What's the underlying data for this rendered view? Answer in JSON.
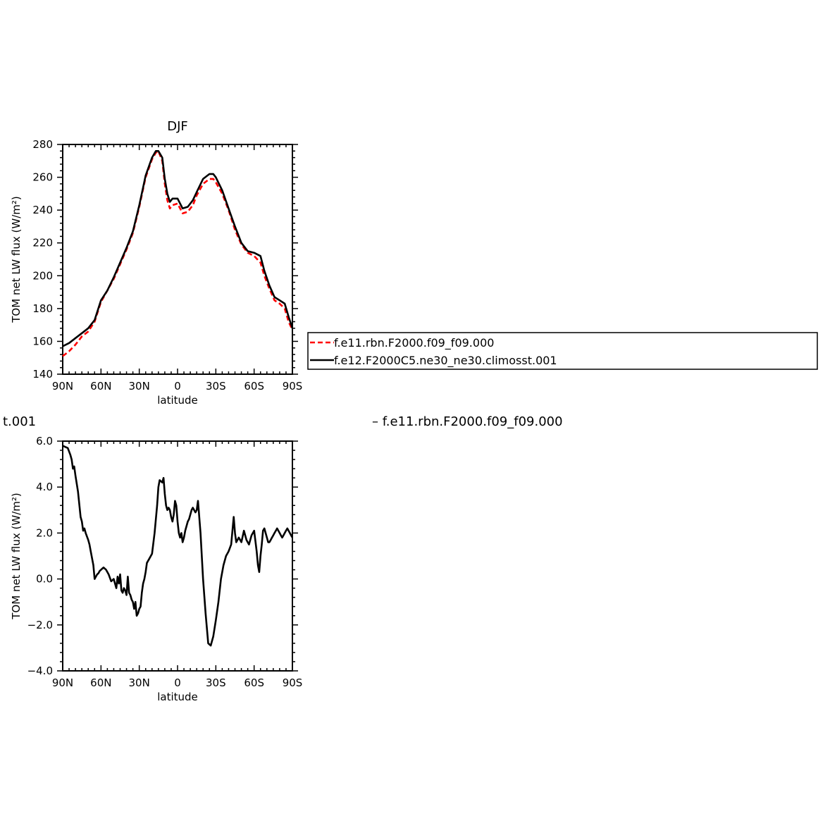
{
  "page_title": "DJF",
  "legend": {
    "entries": [
      {
        "label": "f.e11.rbn.F2000.f09_f09.000",
        "color": "#ff0000",
        "dash": true
      },
      {
        "label": "f.e12.F2000C5.ne30_ne30.climosst.001",
        "color": "#000000",
        "dash": false
      }
    ]
  },
  "diff_title": {
    "left_fragment": "t.001",
    "right_text": "–  f.e11.rbn.F2000.f09_f09.000"
  },
  "chart_data": [
    {
      "type": "line",
      "title": "DJF",
      "xlabel": "latitude",
      "ylabel": "TOM net LW flux (W/m²)",
      "xlim": [
        90,
        -90
      ],
      "ylim": [
        140,
        280
      ],
      "xticks": [
        90,
        60,
        30,
        0,
        -30,
        -60,
        -90
      ],
      "xtick_labels": [
        "90N",
        "60N",
        "30N",
        "0",
        "30S",
        "60S",
        "90S"
      ],
      "yticks": [
        140,
        160,
        180,
        200,
        220,
        240,
        260,
        280
      ],
      "ytick_labels": [
        "140",
        "160",
        "180",
        "200",
        "220",
        "240",
        "260",
        "280"
      ],
      "grid": false,
      "series": [
        {
          "name": "f.e11.rbn.F2000.f09_f09.000",
          "color": "#ff0000",
          "dash": true,
          "x": [
            90,
            85,
            80,
            75,
            70,
            65,
            60,
            55,
            50,
            45,
            40,
            35,
            30,
            25,
            20,
            17,
            15,
            12,
            10,
            8,
            6,
            4,
            0,
            -4,
            -8,
            -12,
            -15,
            -20,
            -25,
            -28,
            -30,
            -35,
            -40,
            -45,
            -50,
            -55,
            -60,
            -65,
            -68,
            -72,
            -76,
            -80,
            -84,
            -87,
            -90
          ],
          "y": [
            151,
            154,
            158,
            163,
            166,
            172,
            184,
            191,
            198,
            207,
            216,
            226,
            242,
            260,
            271,
            275,
            276,
            270,
            256,
            246,
            241,
            243,
            244,
            238,
            239,
            243,
            249,
            256,
            259,
            259,
            257,
            250,
            240,
            228,
            219,
            214,
            212,
            208,
            200,
            192,
            185,
            183,
            180,
            172,
            167
          ]
        },
        {
          "name": "f.e12.F2000C5.ne30_ne30.climosst.001",
          "color": "#000000",
          "dash": false,
          "x": [
            90,
            85,
            80,
            75,
            70,
            65,
            60,
            55,
            50,
            45,
            40,
            35,
            30,
            25,
            20,
            17,
            15,
            12,
            10,
            8,
            6,
            4,
            0,
            -4,
            -8,
            -12,
            -15,
            -20,
            -25,
            -28,
            -30,
            -35,
            -40,
            -45,
            -50,
            -55,
            -60,
            -65,
            -68,
            -72,
            -76,
            -80,
            -84,
            -87,
            -90
          ],
          "y": [
            157,
            159,
            162,
            165,
            168,
            173,
            185,
            191,
            199,
            208,
            217,
            227,
            243,
            261,
            272,
            276,
            276,
            272,
            259,
            250,
            245,
            247,
            247,
            241,
            242,
            246,
            251,
            259,
            262,
            262,
            260,
            252,
            241,
            230,
            220,
            215,
            214,
            212,
            203,
            194,
            187,
            185,
            183,
            175,
            168
          ]
        }
      ]
    },
    {
      "type": "line",
      "title": "",
      "xlabel": "latitude",
      "ylabel": "TOM net LW flux (W/m²)",
      "xlim": [
        90,
        -90
      ],
      "ylim": [
        -4.0,
        6.0
      ],
      "xticks": [
        90,
        60,
        30,
        0,
        -30,
        -60,
        -90
      ],
      "xtick_labels": [
        "90N",
        "60N",
        "30N",
        "0",
        "30S",
        "60S",
        "90S"
      ],
      "yticks": [
        -4,
        -2,
        0,
        2,
        4,
        6
      ],
      "ytick_labels": [
        "−4.0",
        "−2.0",
        "0.0",
        "2.0",
        "4.0",
        "6.0"
      ],
      "grid": false,
      "series": [
        {
          "color": "#000000",
          "dash": false,
          "x": [
            90,
            88,
            86,
            84,
            83,
            82,
            81,
            80,
            78,
            76,
            75,
            74,
            73,
            72,
            70,
            69,
            68,
            66,
            65,
            64,
            63,
            62,
            61,
            60,
            59,
            58,
            56,
            54,
            52,
            50,
            48,
            47,
            46,
            45,
            44,
            43,
            42,
            41,
            40,
            39,
            38,
            37,
            36,
            35,
            34,
            33,
            32,
            31,
            30,
            29,
            28,
            27,
            26,
            25,
            24,
            22,
            20,
            18,
            16,
            15,
            14,
            12,
            11,
            10,
            9,
            8,
            7,
            6,
            5,
            4,
            3,
            2,
            1,
            0,
            -1,
            -2,
            -3,
            -4,
            -5,
            -6,
            -7,
            -8,
            -9,
            -10,
            -11,
            -12,
            -13,
            -14,
            -15,
            -16,
            -18,
            -20,
            -22,
            -24,
            -26,
            -28,
            -30,
            -32,
            -34,
            -36,
            -38,
            -40,
            -42,
            -44,
            -45,
            -46,
            -48,
            -50,
            -52,
            -54,
            -56,
            -58,
            -60,
            -62,
            -63,
            -64,
            -65,
            -66,
            -67,
            -68,
            -69,
            -70,
            -71,
            -72,
            -73,
            -74,
            -75,
            -76,
            -77,
            -78,
            -79,
            -80,
            -81,
            -82,
            -83,
            -84,
            -85,
            -86,
            -87,
            -88,
            -89,
            -90
          ],
          "y": [
            5.8,
            5.75,
            5.7,
            5.4,
            5.2,
            4.8,
            4.9,
            4.5,
            3.8,
            2.7,
            2.5,
            2.1,
            2.2,
            2.0,
            1.7,
            1.5,
            1.2,
            0.6,
            0.0,
            0.1,
            0.2,
            0.25,
            0.35,
            0.4,
            0.45,
            0.5,
            0.4,
            0.2,
            -0.1,
            0.0,
            -0.4,
            0.1,
            -0.2,
            0.2,
            -0.5,
            -0.6,
            -0.4,
            -0.5,
            -0.7,
            0.1,
            -0.6,
            -0.7,
            -0.9,
            -1.0,
            -1.3,
            -1.0,
            -1.6,
            -1.5,
            -1.3,
            -1.2,
            -0.6,
            -0.2,
            0.0,
            0.3,
            0.7,
            0.9,
            1.1,
            2.0,
            3.2,
            4.0,
            4.3,
            4.2,
            4.4,
            3.7,
            3.2,
            3.0,
            3.1,
            3.0,
            2.7,
            2.5,
            2.8,
            3.4,
            3.2,
            2.5,
            2.0,
            1.8,
            2.0,
            1.6,
            1.8,
            2.1,
            2.3,
            2.5,
            2.6,
            2.8,
            3.0,
            3.1,
            3.0,
            2.9,
            3.0,
            3.4,
            2.0,
            0.0,
            -1.5,
            -2.8,
            -2.9,
            -2.5,
            -1.8,
            -1.0,
            0.0,
            0.6,
            1.0,
            1.2,
            1.5,
            2.7,
            2.0,
            1.6,
            1.8,
            1.6,
            2.1,
            1.7,
            1.5,
            1.9,
            2.1,
            1.2,
            0.6,
            0.3,
            1.0,
            1.5,
            2.1,
            2.2,
            2.0,
            1.8,
            1.6,
            1.6,
            1.7,
            1.8,
            1.9,
            2.0,
            2.1,
            2.2,
            2.1,
            2.0,
            1.9,
            1.8,
            1.9,
            2.0,
            2.1,
            2.2,
            2.1,
            2.0,
            1.9,
            1.8
          ]
        }
      ]
    }
  ]
}
